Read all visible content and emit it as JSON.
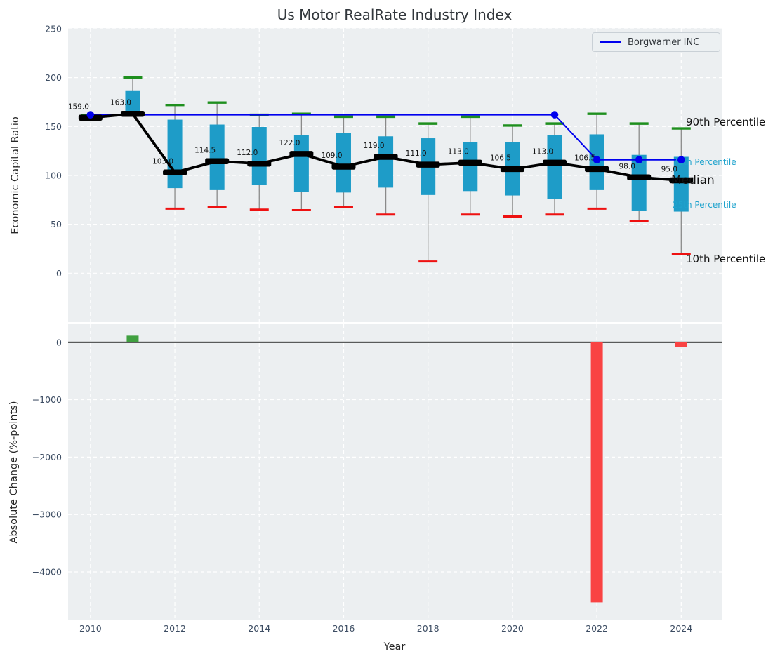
{
  "figure": {
    "title": "Us Motor RealRate Industry Index",
    "legend": {
      "label": "Borgwarner INC"
    }
  },
  "chart_data": [
    {
      "type": "boxplot-line",
      "title": "Us Motor RealRate Industry Index",
      "ylabel": "Economic Capital Ratio",
      "grid": true,
      "legend_position": "upper right",
      "legend_entries": [
        {
          "label": "Borgwarner INC",
          "color": "#0000ee"
        }
      ],
      "ylim": [
        -50,
        250.7
      ],
      "yticks": [
        0,
        50,
        100,
        150,
        200,
        250
      ],
      "ytick_labels": [
        "0",
        "50",
        "100",
        "150",
        "200",
        "250"
      ],
      "xlim": [
        2009.47,
        2024.96
      ],
      "xticks": [
        2010,
        2012,
        2014,
        2016,
        2018,
        2020,
        2022,
        2024
      ],
      "xtick_labels": [
        "2010",
        "2012",
        "2014",
        "2016",
        "2018",
        "2020",
        "2022",
        "2024"
      ],
      "years": [
        2010,
        2011,
        2012,
        2013,
        2014,
        2015,
        2016,
        2017,
        2018,
        2019,
        2020,
        2021,
        2022,
        2023,
        2024
      ],
      "median": [
        159,
        163,
        103,
        114.5,
        112,
        122,
        109,
        119,
        111,
        113,
        106.5,
        113,
        106.5,
        98,
        95
      ],
      "median_labels": [
        "159.0",
        "163.0",
        "103.0",
        "114.5",
        "112.0",
        "122.0",
        "109.0",
        "119.0",
        "111.0",
        "113.0",
        "106.5",
        "113.0",
        "106.5",
        "98.0",
        "95.0"
      ],
      "p75": [
        161,
        187,
        157,
        152,
        149.5,
        141.5,
        143.5,
        140,
        138,
        134,
        134,
        141.5,
        142,
        121,
        119
      ],
      "p25": [
        158,
        163.5,
        87,
        85,
        90,
        83,
        82.5,
        87.5,
        80,
        84,
        79.5,
        76,
        85,
        64,
        63
      ],
      "p90": [
        161.5,
        200,
        172,
        174.5,
        162,
        163,
        160,
        160,
        153,
        160,
        151,
        153,
        163,
        153,
        148
      ],
      "p10": [
        null,
        null,
        66,
        67.5,
        65,
        64.5,
        67.5,
        60,
        12,
        60,
        58,
        60,
        66,
        53,
        20
      ],
      "borgwarner": {
        "name": "Borgwarner INC",
        "x": [
          2010,
          2021,
          2022,
          2023,
          2024
        ],
        "y": [
          162,
          162,
          116,
          116,
          116
        ]
      },
      "annotations": [
        {
          "label": "90th Percentile",
          "size": "large",
          "color": "#111111"
        },
        {
          "label": "75th Percentile",
          "size": "small",
          "color": "#1fa3cd"
        },
        {
          "label": "Median",
          "size": "xlarge",
          "color": "#111111"
        },
        {
          "label": "25th Percentile",
          "size": "small",
          "color": "#1fa3cd"
        },
        {
          "label": "10th Percentile",
          "size": "large",
          "color": "#111111"
        }
      ]
    },
    {
      "type": "bar",
      "ylabel": "Absolute Change (%-points)",
      "xlabel": "Year",
      "grid": true,
      "ylim": [
        -4843,
        315
      ],
      "yticks": [
        0,
        -1000,
        -2000,
        -3000,
        -4000
      ],
      "ytick_labels": [
        "0",
        "−1000",
        "−2000",
        "−3000",
        "−4000"
      ],
      "xticks": [
        2010,
        2012,
        2014,
        2016,
        2018,
        2020,
        2022,
        2024
      ],
      "xtick_labels": [
        "2010",
        "2012",
        "2014",
        "2016",
        "2018",
        "2020",
        "2022",
        "2024"
      ],
      "categories": [
        2010,
        2011,
        2012,
        2013,
        2014,
        2015,
        2016,
        2017,
        2018,
        2019,
        2020,
        2021,
        2022,
        2023,
        2024
      ],
      "values": [
        0,
        115,
        0,
        0,
        0,
        0,
        0,
        0,
        0,
        0,
        0,
        0,
        -4530,
        0,
        -78
      ],
      "positive_color": "#40a040",
      "negative_color": "#f94343"
    }
  ],
  "colors": {
    "plot_bg": "#eceff1",
    "grid": "#ffffff",
    "box_fill": "#1e9cc8",
    "whisker": "#8a8a8a",
    "cap_90": "#1e8f1e",
    "cap_10": "#ee1111",
    "median": "#000000",
    "company_line": "#0000ee",
    "tick_label": "#3d4d63",
    "zero_line": "#000000"
  }
}
